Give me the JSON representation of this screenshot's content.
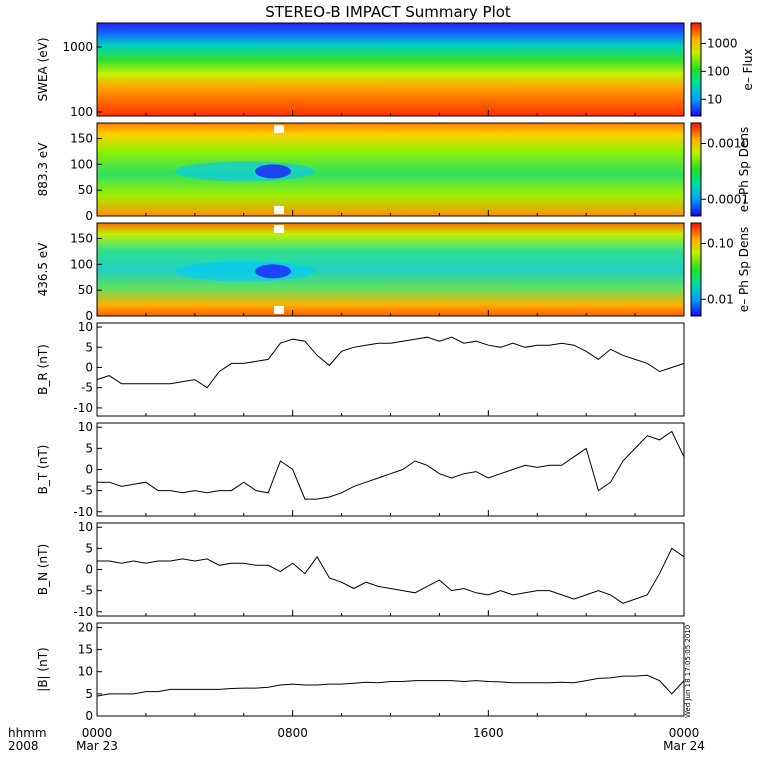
{
  "title": "STEREO-B IMPACT Summary Plot",
  "footer": {
    "left1": "hhmm",
    "left2": "2008",
    "stamp": "Wed Jun 18 17:05:05 2010"
  },
  "x_axis": {
    "ticks": [
      {
        "h": 0,
        "top": "0000",
        "bottom": "Mar 23"
      },
      {
        "h": 8,
        "top": "0800",
        "bottom": ""
      },
      {
        "h": 16,
        "top": "1600",
        "bottom": ""
      },
      {
        "h": 24,
        "top": "0000",
        "bottom": "Mar 24"
      }
    ]
  },
  "chart_data": [
    {
      "type": "heatmap",
      "ylabel": "SWEA (eV)",
      "ylog": true,
      "ylim": [
        100,
        2000
      ],
      "yticks": [
        "1000",
        "100"
      ],
      "colorbar": {
        "label": "e– Flux",
        "ticks": [
          "1000",
          "100",
          "10"
        ]
      }
    },
    {
      "type": "heatmap",
      "ylabel": "883.3 eV",
      "ylim": [
        0,
        180
      ],
      "yticks": [
        "150",
        "100",
        "50",
        "0"
      ],
      "colorbar": {
        "label": "e– Ph Sp Dens",
        "ticks": [
          "0.0010",
          "0.0001"
        ]
      }
    },
    {
      "type": "heatmap",
      "ylabel": "436.5 eV",
      "ylim": [
        0,
        180
      ],
      "yticks": [
        "150",
        "100",
        "50",
        "0"
      ],
      "colorbar": {
        "label": "e– Ph Sp Dens",
        "ticks": [
          "0.10",
          "0.01"
        ]
      }
    },
    {
      "type": "line",
      "ylabel": "B_R (nT)",
      "ylim": [
        -12,
        11
      ],
      "yticks": [
        "10",
        "5",
        "0",
        "-5",
        "-10"
      ],
      "x": [
        0,
        0.5,
        1,
        1.5,
        2,
        2.5,
        3,
        3.5,
        4,
        4.5,
        5,
        5.5,
        6,
        6.5,
        7,
        7.5,
        8,
        8.5,
        9,
        9.5,
        10,
        10.5,
        11,
        11.5,
        12,
        12.5,
        13,
        13.5,
        14,
        14.5,
        15,
        15.5,
        16,
        16.5,
        17,
        17.5,
        18,
        18.5,
        19,
        19.5,
        20,
        20.5,
        21,
        21.5,
        22,
        22.5,
        23,
        23.5,
        24
      ],
      "y": [
        -3,
        -2,
        -4,
        -4,
        -4,
        -4,
        -4,
        -3.5,
        -3,
        -5,
        -1,
        1,
        1,
        1.5,
        2,
        6,
        7,
        6.5,
        3,
        0.5,
        4,
        5,
        5.5,
        6,
        6,
        6.5,
        7,
        7.5,
        6.5,
        7.5,
        6,
        6.5,
        5.5,
        5,
        6,
        5,
        5.5,
        5.5,
        6,
        5.5,
        4,
        2,
        4.5,
        3,
        2,
        1,
        -1,
        0,
        1
      ]
    },
    {
      "type": "line",
      "ylabel": "B_T (nT)",
      "ylim": [
        -11,
        11
      ],
      "yticks": [
        "10",
        "5",
        "0",
        "-5",
        "-10"
      ],
      "x": [
        0,
        0.5,
        1,
        1.5,
        2,
        2.5,
        3,
        3.5,
        4,
        4.5,
        5,
        5.5,
        6,
        6.5,
        7,
        7.5,
        8,
        8.5,
        9,
        9.5,
        10,
        10.5,
        11,
        11.5,
        12,
        12.5,
        13,
        13.5,
        14,
        14.5,
        15,
        15.5,
        16,
        16.5,
        17,
        17.5,
        18,
        18.5,
        19,
        19.5,
        20,
        20.5,
        21,
        21.5,
        22,
        22.5,
        23,
        23.5,
        24
      ],
      "y": [
        -3,
        -3,
        -4,
        -3.5,
        -3,
        -5,
        -5,
        -5.5,
        -5,
        -5.5,
        -5,
        -5,
        -3,
        -5,
        -5.5,
        2,
        0,
        -7,
        -7,
        -6.5,
        -5.5,
        -4,
        -3,
        -2,
        -1,
        0,
        2,
        1,
        -1,
        -2,
        -1,
        -0.5,
        -2,
        -1,
        0,
        1,
        0.5,
        1,
        1,
        3,
        5,
        -5,
        -3,
        2,
        5,
        8,
        7,
        9,
        3
      ]
    },
    {
      "type": "line",
      "ylabel": "B_N (nT)",
      "ylim": [
        -11,
        11
      ],
      "yticks": [
        "10",
        "5",
        "0",
        "-5",
        "-10"
      ],
      "x": [
        0,
        0.5,
        1,
        1.5,
        2,
        2.5,
        3,
        3.5,
        4,
        4.5,
        5,
        5.5,
        6,
        6.5,
        7,
        7.5,
        8,
        8.5,
        9,
        9.5,
        10,
        10.5,
        11,
        11.5,
        12,
        12.5,
        13,
        13.5,
        14,
        14.5,
        15,
        15.5,
        16,
        16.5,
        17,
        17.5,
        18,
        18.5,
        19,
        19.5,
        20,
        20.5,
        21,
        21.5,
        22,
        22.5,
        23,
        23.5,
        24
      ],
      "y": [
        2,
        2,
        1.5,
        2,
        1.5,
        2,
        2,
        2.5,
        2,
        2.5,
        1,
        1.5,
        1.5,
        1,
        1,
        -0.5,
        1.5,
        -1,
        3,
        -2,
        -3,
        -4.5,
        -3,
        -4,
        -4.5,
        -5,
        -5.5,
        -4,
        -2.5,
        -5,
        -4.5,
        -5.5,
        -6,
        -5,
        -6,
        -5.5,
        -5,
        -5,
        -6,
        -7,
        -6,
        -5,
        -6,
        -8,
        -7,
        -6,
        -1,
        5,
        3
      ]
    },
    {
      "type": "line",
      "ylabel": "|B| (nT)",
      "ylim": [
        0,
        21
      ],
      "yticks": [
        "20",
        "15",
        "10",
        "5",
        "0"
      ],
      "x": [
        0,
        0.5,
        1,
        1.5,
        2,
        2.5,
        3,
        3.5,
        4,
        4.5,
        5,
        5.5,
        6,
        6.5,
        7,
        7.5,
        8,
        8.5,
        9,
        9.5,
        10,
        10.5,
        11,
        11.5,
        12,
        12.5,
        13,
        13.5,
        14,
        14.5,
        15,
        15.5,
        16,
        16.5,
        17,
        17.5,
        18,
        18.5,
        19,
        19.5,
        20,
        20.5,
        21,
        21.5,
        22,
        22.5,
        23,
        23.5,
        24
      ],
      "y": [
        4.5,
        5,
        5,
        5,
        5.5,
        5.5,
        6,
        6,
        6,
        6,
        6,
        6.2,
        6.3,
        6.3,
        6.5,
        7,
        7.2,
        7,
        7,
        7.2,
        7.2,
        7.4,
        7.6,
        7.5,
        7.8,
        7.8,
        8,
        8,
        8,
        8,
        7.8,
        8,
        7.8,
        7.7,
        7.5,
        7.5,
        7.5,
        7.5,
        7.6,
        7.5,
        8,
        8.5,
        8.6,
        9,
        9,
        9.2,
        8,
        5,
        8
      ]
    }
  ]
}
